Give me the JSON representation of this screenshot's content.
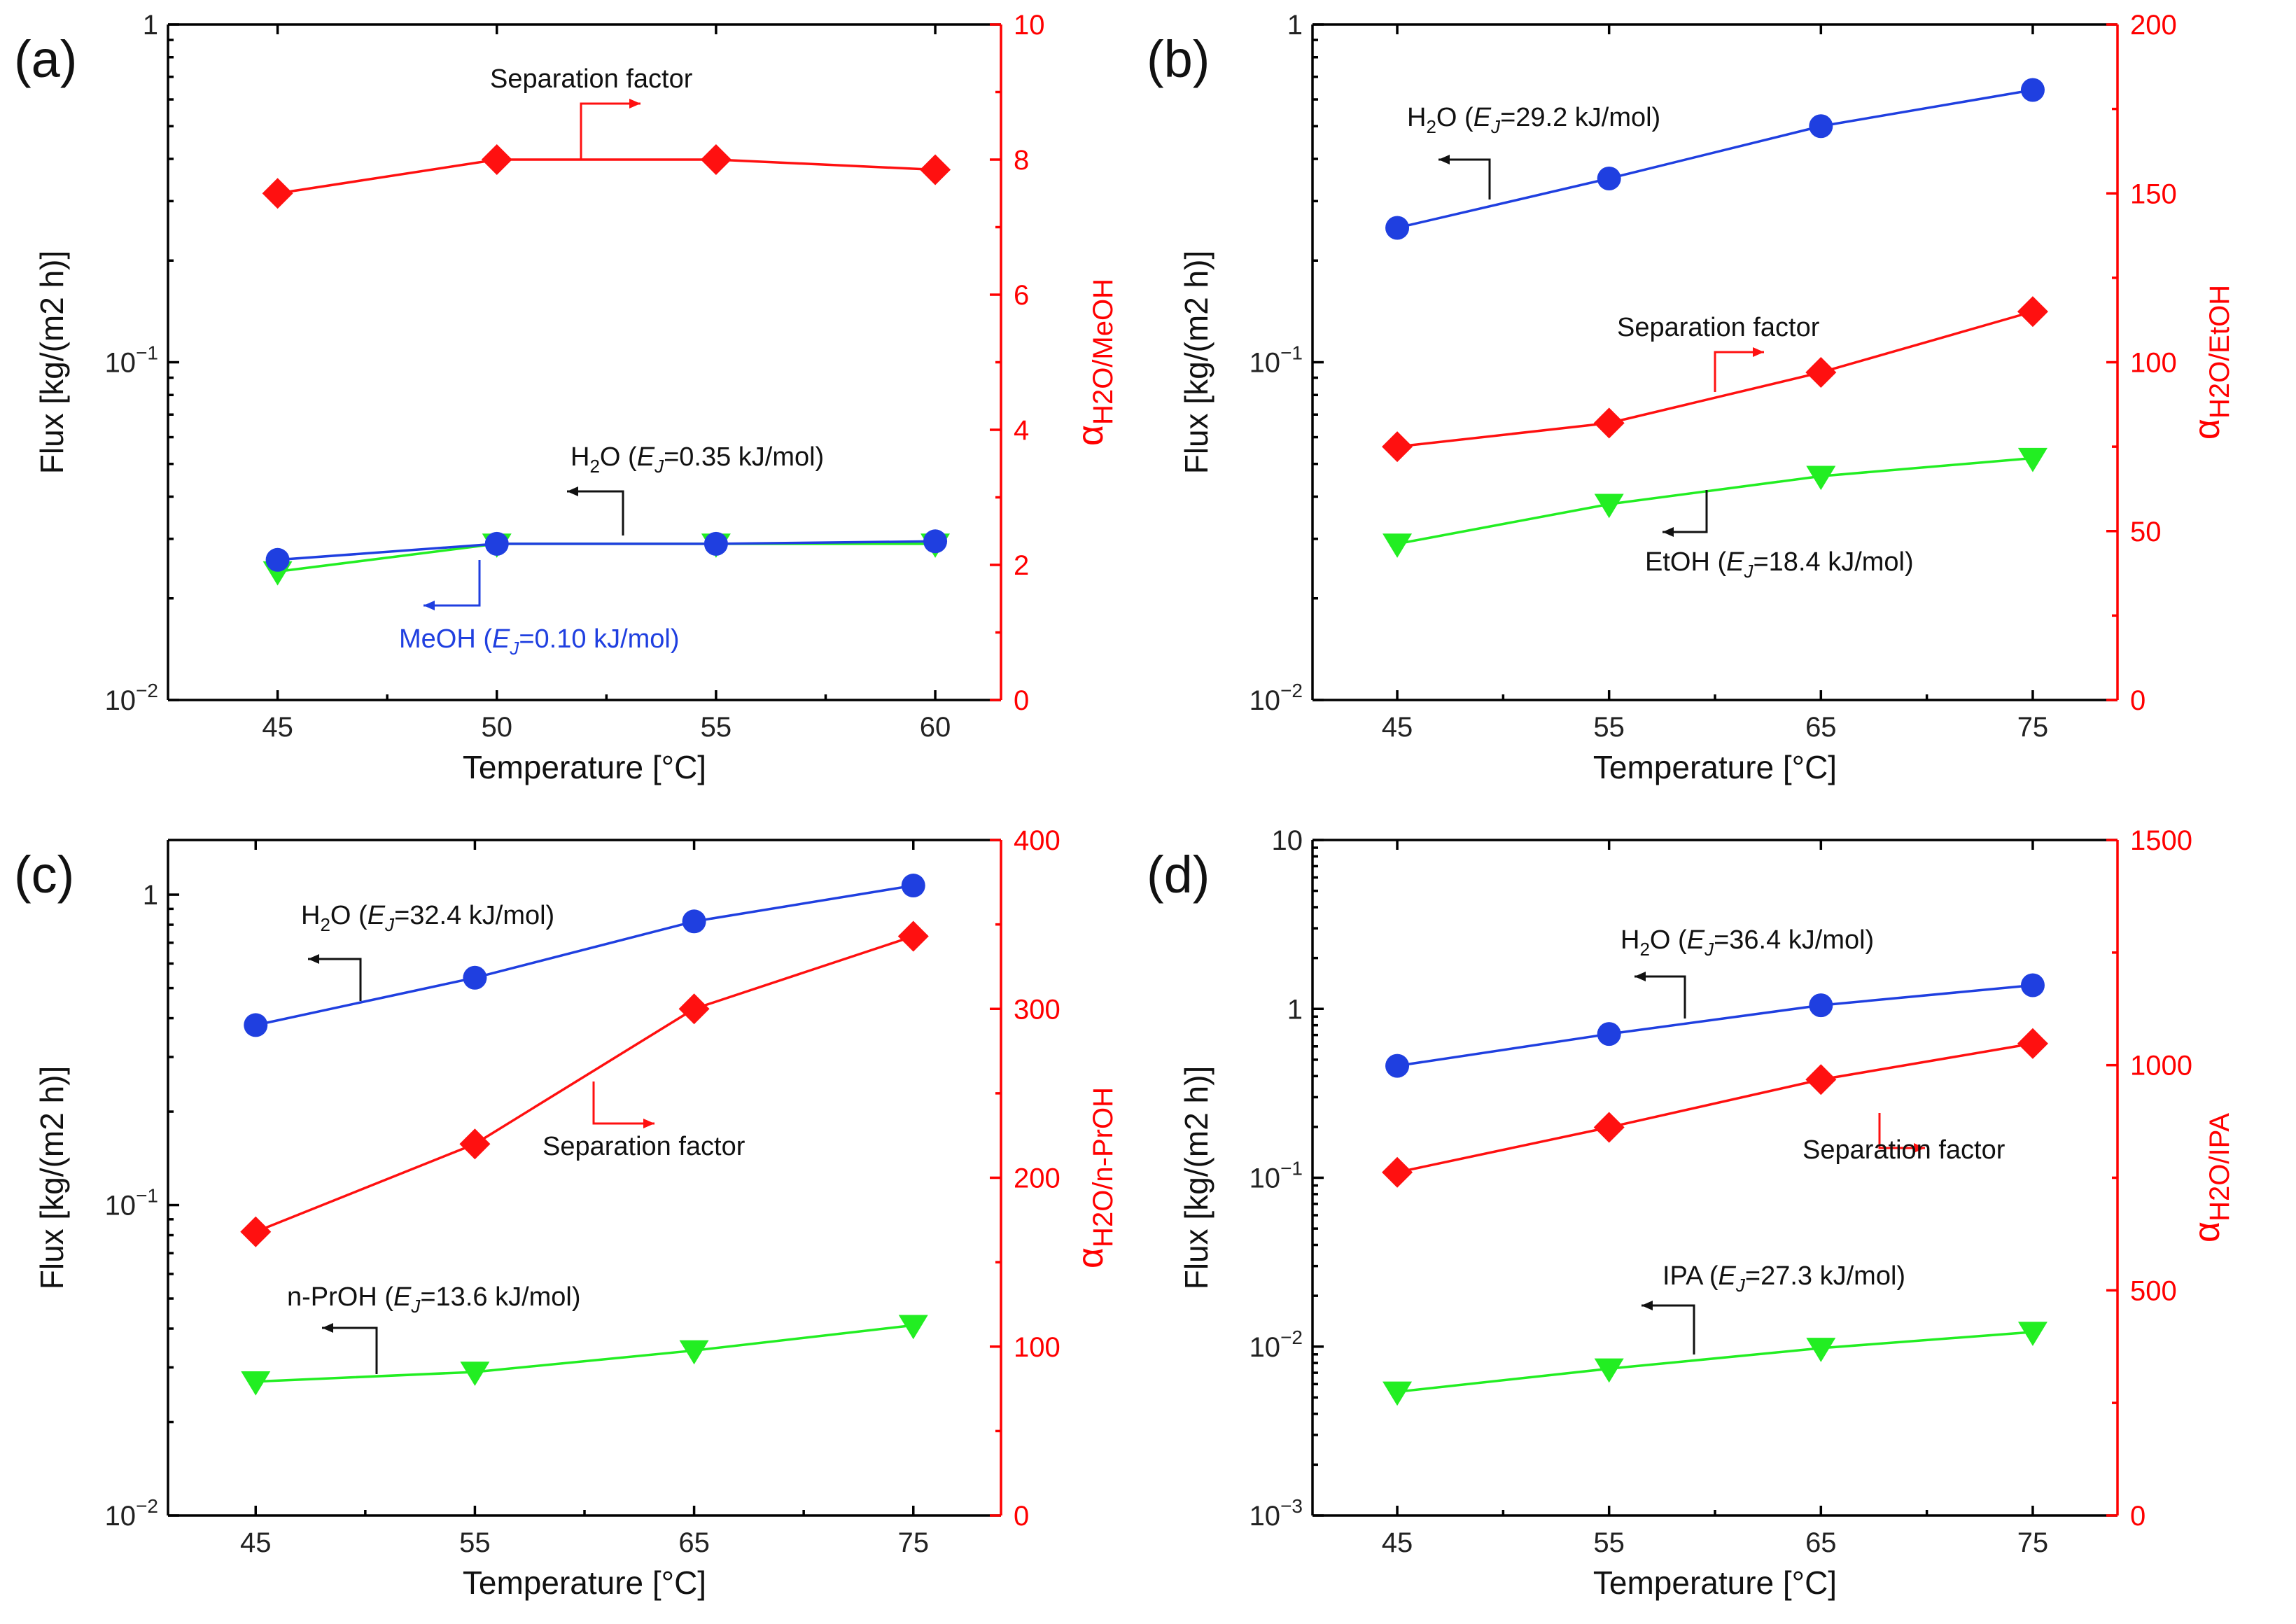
{
  "colors": {
    "blue": "#1f3fe0",
    "green": "#22ee22",
    "red": "#ff1010",
    "axis_right": "#ff0000",
    "black": "#111111"
  },
  "chart_data": [
    {
      "type": "line",
      "panel": "(a)",
      "xlabel": "Temperature [°C]",
      "ylabel": "Flux [kg/(m2 h)]",
      "ylabel_right": "αH2O/MeOH",
      "ylabel_right_sub": "H2O/MeOH",
      "x": [
        45,
        50,
        55,
        60
      ],
      "xticks": [
        "45",
        "50",
        "55",
        "60"
      ],
      "ylim": [
        0.01,
        1
      ],
      "yscale": "log",
      "yticks": [
        {
          "value": 1,
          "base": "1",
          "exp": ""
        },
        {
          "value": 0.1,
          "base": "10",
          "exp": "−1"
        },
        {
          "value": 0.01,
          "base": "10",
          "exp": "−2"
        }
      ],
      "ylim_right": [
        0,
        10
      ],
      "yticks_right": [
        0,
        2,
        4,
        6,
        8,
        10
      ],
      "series": [
        {
          "name": "H2O",
          "axis": "left",
          "color": "green",
          "marker": "triangle",
          "values": [
            0.024,
            0.029,
            0.029,
            0.029
          ]
        },
        {
          "name": "MeOH",
          "axis": "left",
          "color": "blue",
          "marker": "circle",
          "values": [
            0.026,
            0.029,
            0.029,
            0.0295
          ]
        },
        {
          "name": "Separation factor",
          "axis": "right",
          "color": "red",
          "marker": "diamond",
          "values": [
            7.5,
            8.0,
            8.0,
            7.85
          ]
        }
      ],
      "annotations": [
        {
          "text": "Separation factor",
          "color": "black"
        },
        {
          "text_pre": "H",
          "sub": "2",
          "text_mid": "O (",
          "italic": "E",
          "italic_sub": "J",
          "text_post": "=0.35 kJ/mol)",
          "color": "black"
        },
        {
          "text_pre": "MeOH (",
          "sub": "",
          "text_mid": "",
          "italic": "E",
          "italic_sub": "J",
          "text_post": "=0.10 kJ/mol)",
          "color": "blue"
        }
      ]
    },
    {
      "type": "line",
      "panel": "(b)",
      "xlabel": "Temperature [°C]",
      "ylabel": "Flux [kg/(m2 h)]",
      "ylabel_right": "αH2O/EtOH",
      "ylabel_right_sub": "H2O/EtOH",
      "x": [
        45,
        55,
        65,
        75
      ],
      "xticks": [
        "45",
        "55",
        "65",
        "75"
      ],
      "ylim": [
        0.01,
        1
      ],
      "yscale": "log",
      "yticks": [
        {
          "value": 1,
          "base": "1",
          "exp": ""
        },
        {
          "value": 0.1,
          "base": "10",
          "exp": "−1"
        },
        {
          "value": 0.01,
          "base": "10",
          "exp": "−2"
        }
      ],
      "ylim_right": [
        0,
        200
      ],
      "yticks_right": [
        0,
        50,
        100,
        150,
        200
      ],
      "series": [
        {
          "name": "H2O",
          "axis": "left",
          "color": "blue",
          "marker": "circle",
          "values": [
            0.25,
            0.35,
            0.5,
            0.64
          ]
        },
        {
          "name": "EtOH",
          "axis": "left",
          "color": "green",
          "marker": "triangle",
          "values": [
            0.029,
            0.038,
            0.046,
            0.052
          ]
        },
        {
          "name": "Separation factor",
          "axis": "right",
          "color": "red",
          "marker": "diamond",
          "values": [
            75,
            82,
            97,
            115
          ]
        }
      ],
      "annotations": [
        {
          "text_pre": "H",
          "sub": "2",
          "text_mid": "O (",
          "italic": "E",
          "italic_sub": "J",
          "text_post": "=29.2 kJ/mol)",
          "color": "black"
        },
        {
          "text": "Separation factor",
          "color": "black"
        },
        {
          "text_pre": "EtOH (",
          "sub": "",
          "text_mid": "",
          "italic": "E",
          "italic_sub": "J",
          "text_post": "=18.4 kJ/mol)",
          "color": "black"
        }
      ]
    },
    {
      "type": "line",
      "panel": "(c)",
      "xlabel": "Temperature [°C]",
      "ylabel": "Flux [kg/(m2 h)]",
      "ylabel_right": "αH2O/n-PrOH",
      "ylabel_right_sub": "H2O/n-PrOH",
      "x": [
        45,
        55,
        65,
        75
      ],
      "xticks": [
        "45",
        "55",
        "65",
        "75"
      ],
      "ylim": [
        0.01,
        1.5
      ],
      "yscale": "log",
      "yticks": [
        {
          "value": 1,
          "base": "1",
          "exp": ""
        },
        {
          "value": 0.1,
          "base": "10",
          "exp": "−1"
        },
        {
          "value": 0.01,
          "base": "10",
          "exp": "−2"
        }
      ],
      "ylim_right": [
        0,
        400
      ],
      "yticks_right": [
        0,
        100,
        200,
        300,
        400
      ],
      "series": [
        {
          "name": "H2O",
          "axis": "left",
          "color": "blue",
          "marker": "circle",
          "values": [
            0.38,
            0.54,
            0.82,
            1.07
          ]
        },
        {
          "name": "n-PrOH",
          "axis": "left",
          "color": "green",
          "marker": "triangle",
          "values": [
            0.027,
            0.029,
            0.034,
            0.041
          ]
        },
        {
          "name": "Separation factor",
          "axis": "right",
          "color": "red",
          "marker": "diamond",
          "values": [
            168,
            220,
            300,
            343
          ]
        }
      ],
      "annotations": [
        {
          "text_pre": "H",
          "sub": "2",
          "text_mid": "O (",
          "italic": "E",
          "italic_sub": "J",
          "text_post": "=32.4 kJ/mol)",
          "color": "black"
        },
        {
          "text": "Separation factor",
          "color": "black"
        },
        {
          "text_pre": "n-PrOH (",
          "sub": "",
          "text_mid": "",
          "italic": "E",
          "italic_sub": "J",
          "text_post": "=13.6 kJ/mol)",
          "color": "black"
        }
      ]
    },
    {
      "type": "line",
      "panel": "(d)",
      "xlabel": "Temperature [°C]",
      "ylabel": "Flux [kg/(m2 h)]",
      "ylabel_right": "αH2O/IPA",
      "ylabel_right_sub": "H2O/IPA",
      "x": [
        45,
        55,
        65,
        75
      ],
      "xticks": [
        "45",
        "55",
        "65",
        "75"
      ],
      "ylim": [
        0.001,
        10
      ],
      "yscale": "log",
      "yticks": [
        {
          "value": 10,
          "base": "10",
          "exp": ""
        },
        {
          "value": 1,
          "base": "1",
          "exp": ""
        },
        {
          "value": 0.1,
          "base": "10",
          "exp": "−1"
        },
        {
          "value": 0.01,
          "base": "10",
          "exp": "−2"
        },
        {
          "value": 0.001,
          "base": "10",
          "exp": "−3"
        }
      ],
      "ylim_right": [
        0,
        1500
      ],
      "yticks_right": [
        0,
        500,
        1000,
        1500
      ],
      "series": [
        {
          "name": "H2O",
          "axis": "left",
          "color": "blue",
          "marker": "circle",
          "values": [
            0.46,
            0.71,
            1.05,
            1.38
          ]
        },
        {
          "name": "IPA",
          "axis": "left",
          "color": "green",
          "marker": "triangle",
          "values": [
            0.0054,
            0.0074,
            0.0098,
            0.0122
          ]
        },
        {
          "name": "Separation factor",
          "axis": "right",
          "color": "red",
          "marker": "diamond",
          "values": [
            762,
            862,
            968,
            1048
          ]
        }
      ],
      "annotations": [
        {
          "text_pre": "H",
          "sub": "2",
          "text_mid": "O (",
          "italic": "E",
          "italic_sub": "J",
          "text_post": "=36.4 kJ/mol)",
          "color": "black"
        },
        {
          "text": "Separation factor",
          "color": "black"
        },
        {
          "text_pre": "IPA (",
          "sub": "",
          "text_mid": "",
          "italic": "E",
          "italic_sub": "J",
          "text_post": "=27.3 kJ/mol)",
          "color": "black"
        }
      ]
    }
  ]
}
